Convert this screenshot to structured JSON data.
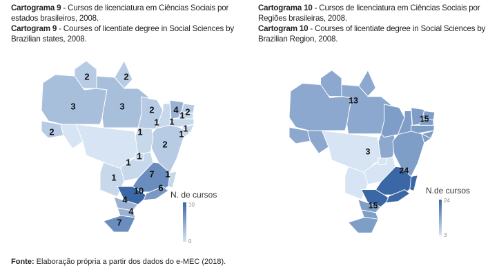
{
  "captions": {
    "left": {
      "pt_bold": "Cartograma 9",
      "pt_text": " - Cursos de licenciatura em Ciências Sociais por estados brasileiros, 2008.",
      "en_bold": "Cartogram 9",
      "en_text": " - Courses of licentiate degree in Social Sciences by Brazilian states, 2008."
    },
    "right": {
      "pt_bold": "Cartograma 10",
      "pt_text": " - Cursos de licenciatura em Ciências Sociais por Regiões brasileiras, 2008.",
      "en_bold": "Cartogram 10",
      "en_text": " - Courses of licentiate degree in Social Sciences by Brazilian Region, 2008."
    }
  },
  "source": {
    "bold": "Fonte:",
    "text": " Elaboração própria a partir dos dados do e-MEC (2018)."
  },
  "colors": {
    "low": "#d7e4f3",
    "high": "#3b67a6",
    "border": "#ffffff"
  },
  "map_states": {
    "legend_title": "N. de cursos",
    "legend_min": "0",
    "legend_max": "10",
    "values": {
      "RR": 2,
      "AP": 2,
      "AM": 3,
      "PA": 3,
      "AC": 2,
      "RO": 0,
      "MA": 2,
      "PI": 1,
      "CE": 4,
      "RN": 2,
      "PB": 1,
      "PE": 1,
      "AL": 1,
      "SE": 1,
      "BA": 2,
      "TO": 1,
      "MT": 0,
      "GO": 1,
      "DF": 1,
      "MS": 1,
      "MG": 7,
      "ES": 1,
      "SP": 10,
      "RJ": 6,
      "PR": 4,
      "SC": 4,
      "RS": 7
    }
  },
  "map_regions": {
    "legend_title": "N.de cursos",
    "legend_min": "3",
    "legend_max": "24",
    "values": {
      "Norte": 13,
      "Nordeste": 15,
      "Centro-Oeste": 3,
      "Sudeste": 24,
      "Sul": 15
    }
  }
}
